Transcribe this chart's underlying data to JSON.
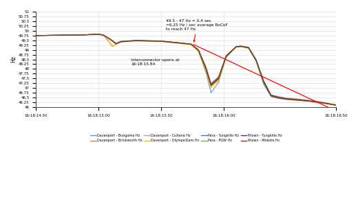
{
  "title": "",
  "ylabel": "Hz",
  "xlabel": "",
  "ylim": [
    46.0,
    51.0
  ],
  "yticks": [
    46.0,
    46.25,
    46.5,
    46.75,
    47.0,
    47.25,
    47.5,
    47.75,
    48.0,
    48.25,
    48.5,
    48.75,
    49.0,
    49.25,
    49.5,
    49.75,
    50.0,
    50.25,
    50.5,
    50.75,
    51.0
  ],
  "xtick_labels": [
    "16:18:14.50",
    "16:18:15:00",
    "16:18:15.50",
    "16:18:16:00",
    "16:18:16:50"
  ],
  "xtick_positions": [
    0,
    25,
    50,
    75,
    120
  ],
  "annotation1_text": "49.5 - 47 Hz = 0.4 sec\n=6.25 Hz / sec average RoCoF\nto reach 47 Hz.",
  "annotation2_text": "Interconnector opens at\n16:18:15.84",
  "legend_labels": [
    "Davenport - Bungama Hz",
    "Davenport - Brinkworth Hz",
    "Davenport - Cultana Hz",
    "Davenport - OlympicDam Hz",
    "Para - Tungkillo Hz",
    "Para - PGW Hz",
    "Rtown - Tungkillo Hz",
    "Rtown - Mokota Hz"
  ],
  "line_colors": [
    "#5B9BD5",
    "#ED7D31",
    "#A5A5A5",
    "#FFC000",
    "#4472C4",
    "#70AD47",
    "#264478",
    "#9C3B00"
  ],
  "background_color": "#FFFFFF",
  "grid_color": "#D9D9D9"
}
